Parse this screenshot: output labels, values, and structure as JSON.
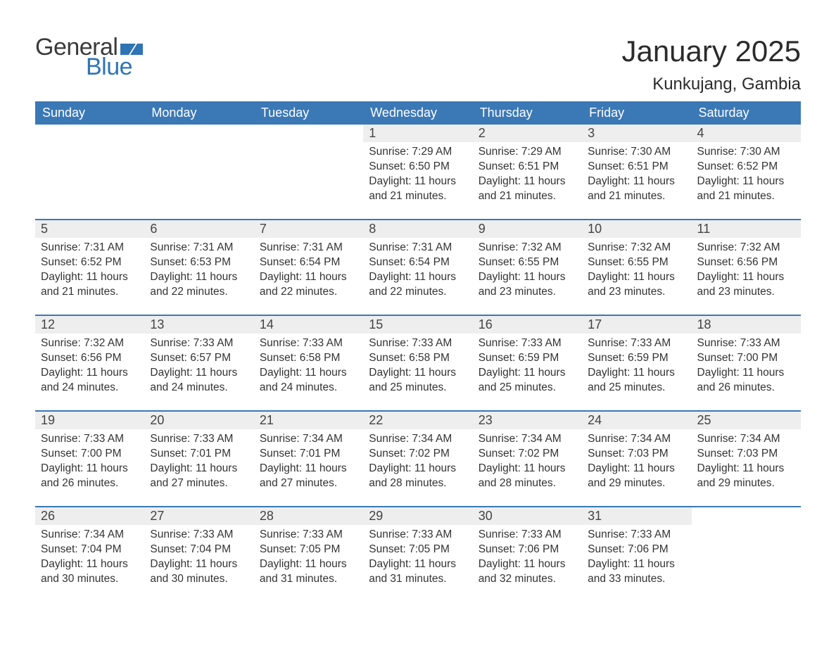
{
  "logo": {
    "word1": "General",
    "word2": "Blue",
    "flag_color": "#2f74b5"
  },
  "title": "January 2025",
  "location": "Kunkujang, Gambia",
  "colors": {
    "header_bg": "#3b78b6",
    "header_text": "#ffffff",
    "daynum_bg": "#eeeeee",
    "row_border": "#3b78b6",
    "body_text": "#333333",
    "page_bg": "#ffffff"
  },
  "weekdays": [
    "Sunday",
    "Monday",
    "Tuesday",
    "Wednesday",
    "Thursday",
    "Friday",
    "Saturday"
  ],
  "weeks": [
    [
      null,
      null,
      null,
      {
        "day": "1",
        "sunrise": "Sunrise: 7:29 AM",
        "sunset": "Sunset: 6:50 PM",
        "daylight1": "Daylight: 11 hours",
        "daylight2": "and 21 minutes."
      },
      {
        "day": "2",
        "sunrise": "Sunrise: 7:29 AM",
        "sunset": "Sunset: 6:51 PM",
        "daylight1": "Daylight: 11 hours",
        "daylight2": "and 21 minutes."
      },
      {
        "day": "3",
        "sunrise": "Sunrise: 7:30 AM",
        "sunset": "Sunset: 6:51 PM",
        "daylight1": "Daylight: 11 hours",
        "daylight2": "and 21 minutes."
      },
      {
        "day": "4",
        "sunrise": "Sunrise: 7:30 AM",
        "sunset": "Sunset: 6:52 PM",
        "daylight1": "Daylight: 11 hours",
        "daylight2": "and 21 minutes."
      }
    ],
    [
      {
        "day": "5",
        "sunrise": "Sunrise: 7:31 AM",
        "sunset": "Sunset: 6:52 PM",
        "daylight1": "Daylight: 11 hours",
        "daylight2": "and 21 minutes."
      },
      {
        "day": "6",
        "sunrise": "Sunrise: 7:31 AM",
        "sunset": "Sunset: 6:53 PM",
        "daylight1": "Daylight: 11 hours",
        "daylight2": "and 22 minutes."
      },
      {
        "day": "7",
        "sunrise": "Sunrise: 7:31 AM",
        "sunset": "Sunset: 6:54 PM",
        "daylight1": "Daylight: 11 hours",
        "daylight2": "and 22 minutes."
      },
      {
        "day": "8",
        "sunrise": "Sunrise: 7:31 AM",
        "sunset": "Sunset: 6:54 PM",
        "daylight1": "Daylight: 11 hours",
        "daylight2": "and 22 minutes."
      },
      {
        "day": "9",
        "sunrise": "Sunrise: 7:32 AM",
        "sunset": "Sunset: 6:55 PM",
        "daylight1": "Daylight: 11 hours",
        "daylight2": "and 23 minutes."
      },
      {
        "day": "10",
        "sunrise": "Sunrise: 7:32 AM",
        "sunset": "Sunset: 6:55 PM",
        "daylight1": "Daylight: 11 hours",
        "daylight2": "and 23 minutes."
      },
      {
        "day": "11",
        "sunrise": "Sunrise: 7:32 AM",
        "sunset": "Sunset: 6:56 PM",
        "daylight1": "Daylight: 11 hours",
        "daylight2": "and 23 minutes."
      }
    ],
    [
      {
        "day": "12",
        "sunrise": "Sunrise: 7:32 AM",
        "sunset": "Sunset: 6:56 PM",
        "daylight1": "Daylight: 11 hours",
        "daylight2": "and 24 minutes."
      },
      {
        "day": "13",
        "sunrise": "Sunrise: 7:33 AM",
        "sunset": "Sunset: 6:57 PM",
        "daylight1": "Daylight: 11 hours",
        "daylight2": "and 24 minutes."
      },
      {
        "day": "14",
        "sunrise": "Sunrise: 7:33 AM",
        "sunset": "Sunset: 6:58 PM",
        "daylight1": "Daylight: 11 hours",
        "daylight2": "and 24 minutes."
      },
      {
        "day": "15",
        "sunrise": "Sunrise: 7:33 AM",
        "sunset": "Sunset: 6:58 PM",
        "daylight1": "Daylight: 11 hours",
        "daylight2": "and 25 minutes."
      },
      {
        "day": "16",
        "sunrise": "Sunrise: 7:33 AM",
        "sunset": "Sunset: 6:59 PM",
        "daylight1": "Daylight: 11 hours",
        "daylight2": "and 25 minutes."
      },
      {
        "day": "17",
        "sunrise": "Sunrise: 7:33 AM",
        "sunset": "Sunset: 6:59 PM",
        "daylight1": "Daylight: 11 hours",
        "daylight2": "and 25 minutes."
      },
      {
        "day": "18",
        "sunrise": "Sunrise: 7:33 AM",
        "sunset": "Sunset: 7:00 PM",
        "daylight1": "Daylight: 11 hours",
        "daylight2": "and 26 minutes."
      }
    ],
    [
      {
        "day": "19",
        "sunrise": "Sunrise: 7:33 AM",
        "sunset": "Sunset: 7:00 PM",
        "daylight1": "Daylight: 11 hours",
        "daylight2": "and 26 minutes."
      },
      {
        "day": "20",
        "sunrise": "Sunrise: 7:33 AM",
        "sunset": "Sunset: 7:01 PM",
        "daylight1": "Daylight: 11 hours",
        "daylight2": "and 27 minutes."
      },
      {
        "day": "21",
        "sunrise": "Sunrise: 7:34 AM",
        "sunset": "Sunset: 7:01 PM",
        "daylight1": "Daylight: 11 hours",
        "daylight2": "and 27 minutes."
      },
      {
        "day": "22",
        "sunrise": "Sunrise: 7:34 AM",
        "sunset": "Sunset: 7:02 PM",
        "daylight1": "Daylight: 11 hours",
        "daylight2": "and 28 minutes."
      },
      {
        "day": "23",
        "sunrise": "Sunrise: 7:34 AM",
        "sunset": "Sunset: 7:02 PM",
        "daylight1": "Daylight: 11 hours",
        "daylight2": "and 28 minutes."
      },
      {
        "day": "24",
        "sunrise": "Sunrise: 7:34 AM",
        "sunset": "Sunset: 7:03 PM",
        "daylight1": "Daylight: 11 hours",
        "daylight2": "and 29 minutes."
      },
      {
        "day": "25",
        "sunrise": "Sunrise: 7:34 AM",
        "sunset": "Sunset: 7:03 PM",
        "daylight1": "Daylight: 11 hours",
        "daylight2": "and 29 minutes."
      }
    ],
    [
      {
        "day": "26",
        "sunrise": "Sunrise: 7:34 AM",
        "sunset": "Sunset: 7:04 PM",
        "daylight1": "Daylight: 11 hours",
        "daylight2": "and 30 minutes."
      },
      {
        "day": "27",
        "sunrise": "Sunrise: 7:33 AM",
        "sunset": "Sunset: 7:04 PM",
        "daylight1": "Daylight: 11 hours",
        "daylight2": "and 30 minutes."
      },
      {
        "day": "28",
        "sunrise": "Sunrise: 7:33 AM",
        "sunset": "Sunset: 7:05 PM",
        "daylight1": "Daylight: 11 hours",
        "daylight2": "and 31 minutes."
      },
      {
        "day": "29",
        "sunrise": "Sunrise: 7:33 AM",
        "sunset": "Sunset: 7:05 PM",
        "daylight1": "Daylight: 11 hours",
        "daylight2": "and 31 minutes."
      },
      {
        "day": "30",
        "sunrise": "Sunrise: 7:33 AM",
        "sunset": "Sunset: 7:06 PM",
        "daylight1": "Daylight: 11 hours",
        "daylight2": "and 32 minutes."
      },
      {
        "day": "31",
        "sunrise": "Sunrise: 7:33 AM",
        "sunset": "Sunset: 7:06 PM",
        "daylight1": "Daylight: 11 hours",
        "daylight2": "and 33 minutes."
      },
      null
    ]
  ]
}
